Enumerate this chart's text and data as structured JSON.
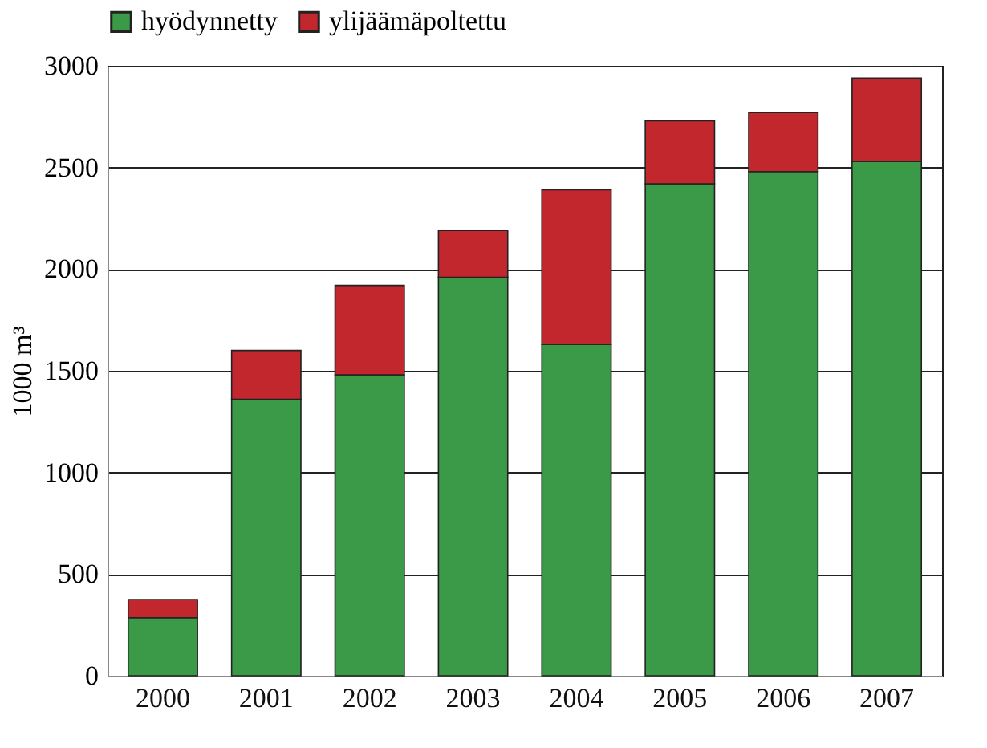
{
  "chart_data": {
    "type": "bar",
    "stacked": true,
    "ylabel": "1000 m³",
    "categories": [
      "2000",
      "2001",
      "2002",
      "2003",
      "2004",
      "2005",
      "2006",
      "2007"
    ],
    "series": [
      {
        "name": "hyödynnetty",
        "color": "#3a9a48",
        "values": [
          285,
          1360,
          1480,
          1960,
          1630,
          2420,
          2480,
          2530
        ]
      },
      {
        "name": "ylijäämäpoltettu",
        "color": "#c1272d",
        "values": [
          90,
          240,
          440,
          230,
          760,
          310,
          290,
          410
        ]
      }
    ],
    "ylim": [
      0,
      3000
    ],
    "yticks": [
      0,
      500,
      1000,
      1500,
      2000,
      2500,
      3000
    ],
    "grid": "y",
    "legend": "top"
  }
}
